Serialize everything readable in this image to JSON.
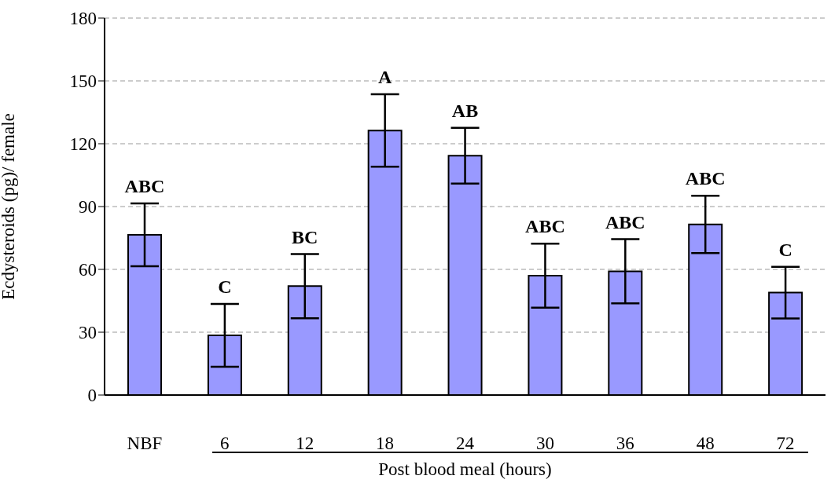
{
  "chart_data": {
    "type": "bar",
    "xlabel": "Post blood meal (hours)",
    "ylabel": "Ecdysteroids (pg)/ female",
    "categories": [
      "NBF",
      "6",
      "12",
      "18",
      "24",
      "30",
      "36",
      "48",
      "72"
    ],
    "values": [
      76.5,
      28.5,
      52,
      126.3,
      114.3,
      57,
      59.1,
      81.5,
      48.9
    ],
    "errors": [
      15,
      15,
      15.3,
      17.3,
      13.3,
      15.3,
      15.3,
      13.7,
      12.3
    ],
    "color": "#9999ff",
    "ylim": [
      0,
      180
    ],
    "yticks": [
      0,
      30,
      60,
      90,
      120,
      150,
      180
    ],
    "grid": "y",
    "annotations": [
      "ABC",
      "C",
      "BC",
      "A",
      "AB",
      "ABC",
      "ABC",
      "ABC",
      "C"
    ]
  }
}
